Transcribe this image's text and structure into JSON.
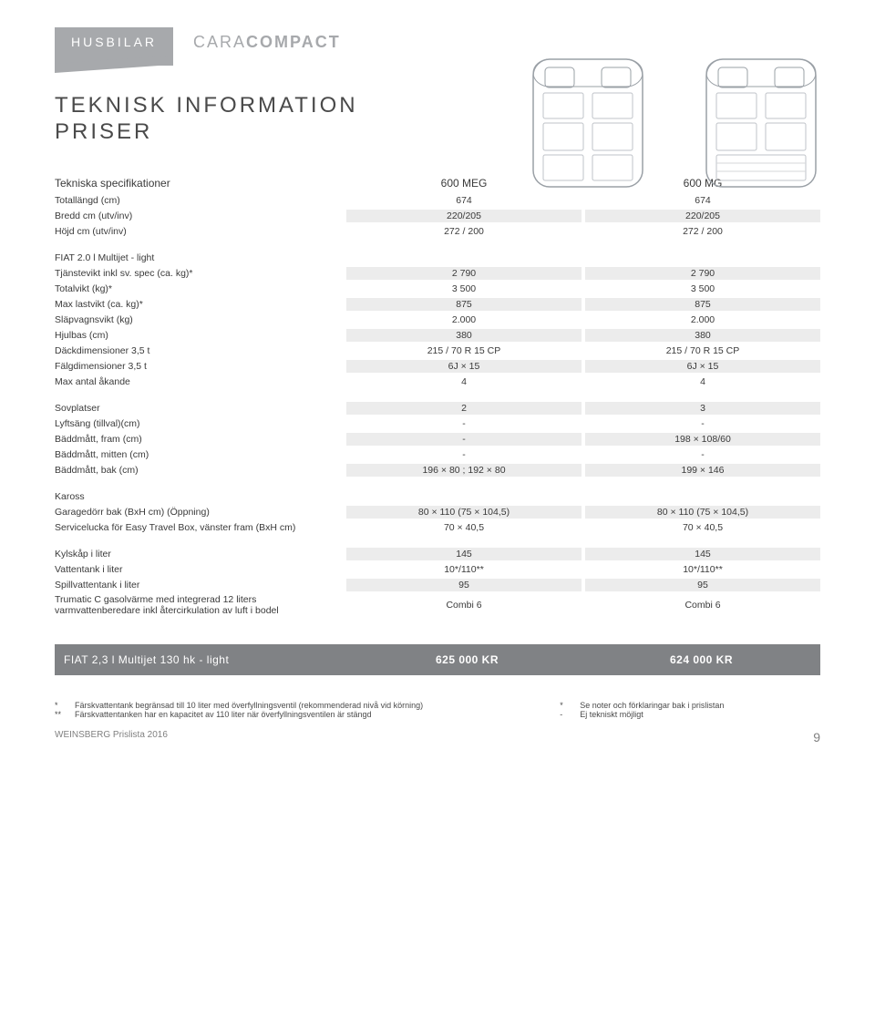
{
  "header": {
    "husbilar": "HUSBILAR",
    "brand_light": "CARA",
    "brand_bold": "COMPACT"
  },
  "title_line1": "TEKNISK INFORMATION",
  "title_line2": "PRISER",
  "spec_header": {
    "label": "Tekniska specifikationer",
    "col1": "600 MEG",
    "col2": "600 MG"
  },
  "basic_rows": [
    {
      "label": "Totallängd (cm)",
      "c1": "674",
      "c2": "674"
    },
    {
      "label": "Bredd cm (utv/inv)",
      "c1": "220/205",
      "c2": "220/205"
    },
    {
      "label": "Höjd cm (utv/inv)",
      "c1": "272 / 200",
      "c2": "272 / 200"
    }
  ],
  "chassis_header": "FIAT 2.0 l Multijet - light",
  "chassis_rows": [
    {
      "label": "Tjänstevikt inkl sv. spec (ca. kg)*",
      "c1": "2 790",
      "c2": "2 790"
    },
    {
      "label": "Totalvikt (kg)*",
      "c1": "3 500",
      "c2": "3 500"
    },
    {
      "label": "Max lastvikt (ca. kg)*",
      "c1": "875",
      "c2": "875"
    },
    {
      "label": "Släpvagnsvikt (kg)",
      "c1": "2.000",
      "c2": "2.000"
    },
    {
      "label": "Hjulbas (cm)",
      "c1": "380",
      "c2": "380"
    },
    {
      "label": "Däckdimensioner 3,5 t",
      "c1": "215 / 70 R 15 CP",
      "c2": "215 / 70 R 15 CP"
    },
    {
      "label": "Fälgdimensioner 3,5 t",
      "c1": "6J × 15",
      "c2": "6J × 15"
    },
    {
      "label": "Max antal åkande",
      "c1": "4",
      "c2": "4"
    }
  ],
  "sleep_rows": [
    {
      "label": "Sovplatser",
      "c1": "2",
      "c2": "3"
    },
    {
      "label": "Lyftsäng (tillval)(cm)",
      "c1": "-",
      "c2": "-"
    },
    {
      "label": "Bäddmått, fram (cm)",
      "c1": "-",
      "c2": "198 × 108/60"
    },
    {
      "label": "Bäddmått, mitten (cm)",
      "c1": "-",
      "c2": "-"
    },
    {
      "label": "Bäddmått, bak (cm)",
      "c1": "196 × 80 ; 192 × 80",
      "c2": "199 × 146"
    }
  ],
  "body_header": "Kaross",
  "body_rows": [
    {
      "label": "Garagedörr bak (BxH cm) (Öppning)",
      "c1": "80 × 110 (75 × 104,5)",
      "c2": "80 × 110 (75 × 104,5)"
    },
    {
      "label": "Servicelucka för Easy Travel Box, vänster fram (BxH cm)",
      "c1": "70 × 40,5",
      "c2": "70 × 40,5"
    }
  ],
  "tank_rows": [
    {
      "label": "Kylskåp i liter",
      "c1": "145",
      "c2": "145"
    },
    {
      "label": "Vattentank i liter",
      "c1": "10*/110**",
      "c2": "10*/110**"
    },
    {
      "label": "Spillvattentank i liter",
      "c1": "95",
      "c2": "95"
    },
    {
      "label": "Trumatic C gasolvärme med integrerad 12 liters varmvattenberedare inkl återcirkulation av luft i bodel",
      "c1": "Combi 6",
      "c2": "Combi 6"
    }
  ],
  "price": {
    "label": "FIAT 2,3 l Multijet 130 hk - light",
    "c1": "625 000 KR",
    "c2": "624 000 KR"
  },
  "footnotes_left": [
    {
      "mark": "*",
      "text": "Färskvattentank begränsad till 10 liter med överfyllningsventil (rekommenderad nivå vid körning)"
    },
    {
      "mark": "**",
      "text": "Färskvattentanken har en kapacitet av 110 liter när överfyllningsventilen är stängd"
    }
  ],
  "footnotes_right": [
    {
      "mark": "*",
      "text": "Se noter och förklaringar bak i prislistan"
    },
    {
      "mark": "-",
      "text": "Ej tekniskt möjligt"
    }
  ],
  "footer": {
    "left": "WEINSBERG Prislista 2016",
    "page": "9"
  },
  "colors": {
    "tag_bg": "#a7a9ac",
    "brand_text": "#a7a9ac",
    "stripe": "#ececec",
    "price_bar": "#808285",
    "text": "#3a3a3a"
  }
}
